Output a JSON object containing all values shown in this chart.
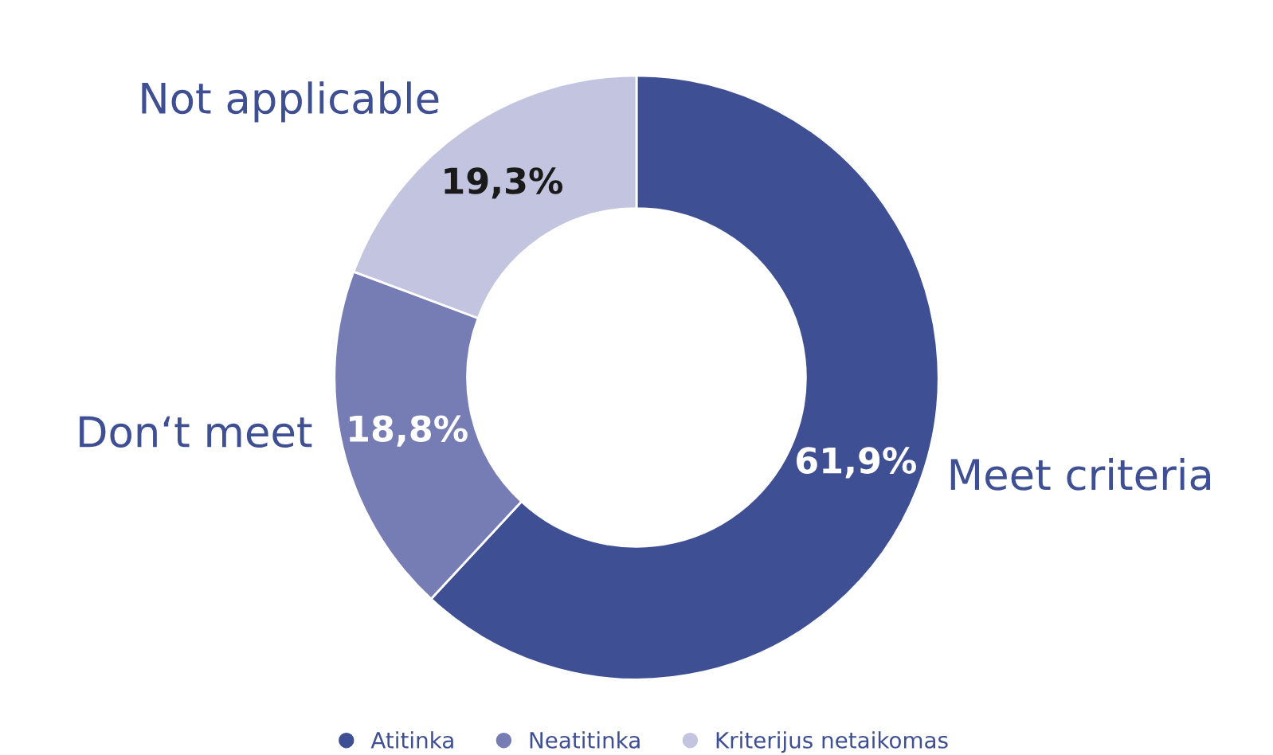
{
  "chart_data": {
    "type": "donut",
    "categories": [
      "Atitinka",
      "Neatitinka",
      "Kriterijus netaikomas"
    ],
    "values": [
      61.9,
      18.8,
      19.3
    ],
    "colors": [
      "#3f4f93",
      "#767db5",
      "#c3c5e0"
    ],
    "value_labels": [
      "61,9%",
      "18,8%",
      "19,3%"
    ],
    "annotations": [
      "Meet criteria",
      "Don‘t meet",
      "Not applicable"
    ],
    "legend": "bottom"
  }
}
